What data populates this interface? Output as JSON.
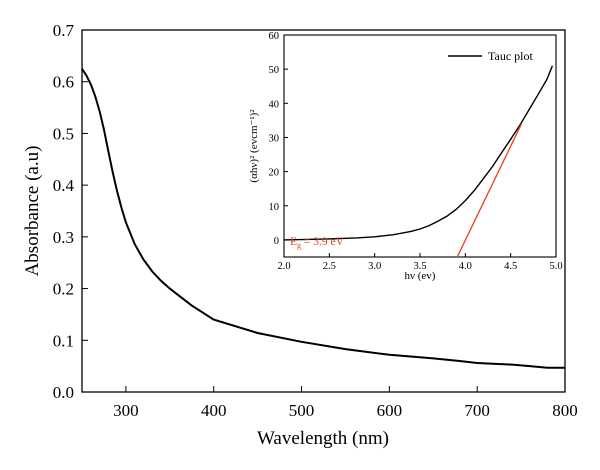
{
  "chart_data": [
    {
      "type": "line",
      "xlabel": "Wavelength (nm)",
      "ylabel": "Absorbance (a.u)",
      "xlim": [
        250,
        800
      ],
      "ylim": [
        0.0,
        0.7
      ],
      "xticks": [
        "300",
        "400",
        "500",
        "600",
        "700",
        "800"
      ],
      "yticks": [
        "0.0",
        "0.1",
        "0.2",
        "0.3",
        "0.4",
        "0.5",
        "0.6",
        "0.7"
      ],
      "series": [
        {
          "color": "#000000",
          "x": [
            250,
            255,
            260,
            265,
            270,
            275,
            280,
            285,
            290,
            295,
            300,
            310,
            320,
            330,
            340,
            350,
            375,
            400,
            450,
            500,
            550,
            600,
            650,
            680,
            700,
            740,
            760,
            780,
            800
          ],
          "y": [
            0.625,
            0.612,
            0.595,
            0.572,
            0.543,
            0.507,
            0.466,
            0.425,
            0.388,
            0.356,
            0.328,
            0.286,
            0.256,
            0.233,
            0.215,
            0.2,
            0.167,
            0.14,
            0.114,
            0.097,
            0.083,
            0.072,
            0.065,
            0.06,
            0.056,
            0.053,
            0.05,
            0.047,
            0.047
          ]
        }
      ]
    },
    {
      "type": "line",
      "xlabel": "hν (ev)",
      "ylabel": "(αhν)² (evcm⁻¹)²",
      "xlim": [
        2.0,
        5.0
      ],
      "ylim": [
        -5,
        60
      ],
      "xticks": [
        "2.0",
        "2.5",
        "3.0",
        "3.5",
        "4.0",
        "4.5",
        "5.0"
      ],
      "yticks": [
        "0",
        "10",
        "20",
        "30",
        "40",
        "50",
        "60"
      ],
      "legend": {
        "position": "top-right",
        "entries": [
          "Tauc plot"
        ]
      },
      "series": [
        {
          "name": "Tauc plot",
          "color": "#000000",
          "x": [
            2.0,
            2.5,
            2.8,
            3.0,
            3.2,
            3.4,
            3.5,
            3.6,
            3.7,
            3.8,
            3.9,
            4.0,
            4.1,
            4.2,
            4.3,
            4.4,
            4.5,
            4.6,
            4.7,
            4.8,
            4.9,
            4.96
          ],
          "y": [
            0.0,
            0.3,
            0.6,
            0.9,
            1.5,
            2.5,
            3.2,
            4.2,
            5.5,
            7.0,
            9.0,
            11.5,
            14.5,
            18.0,
            21.5,
            25.5,
            29.5,
            33.5,
            38.0,
            42.5,
            47.0,
            51.0
          ]
        },
        {
          "color": "#e8401c",
          "x": [
            3.91,
            4.62
          ],
          "y": [
            -5,
            34
          ]
        }
      ],
      "annotations": [
        {
          "text": "E",
          "sub": "g",
          "rest": " = 3.9 eV",
          "color": "#e8401c"
        }
      ]
    }
  ]
}
